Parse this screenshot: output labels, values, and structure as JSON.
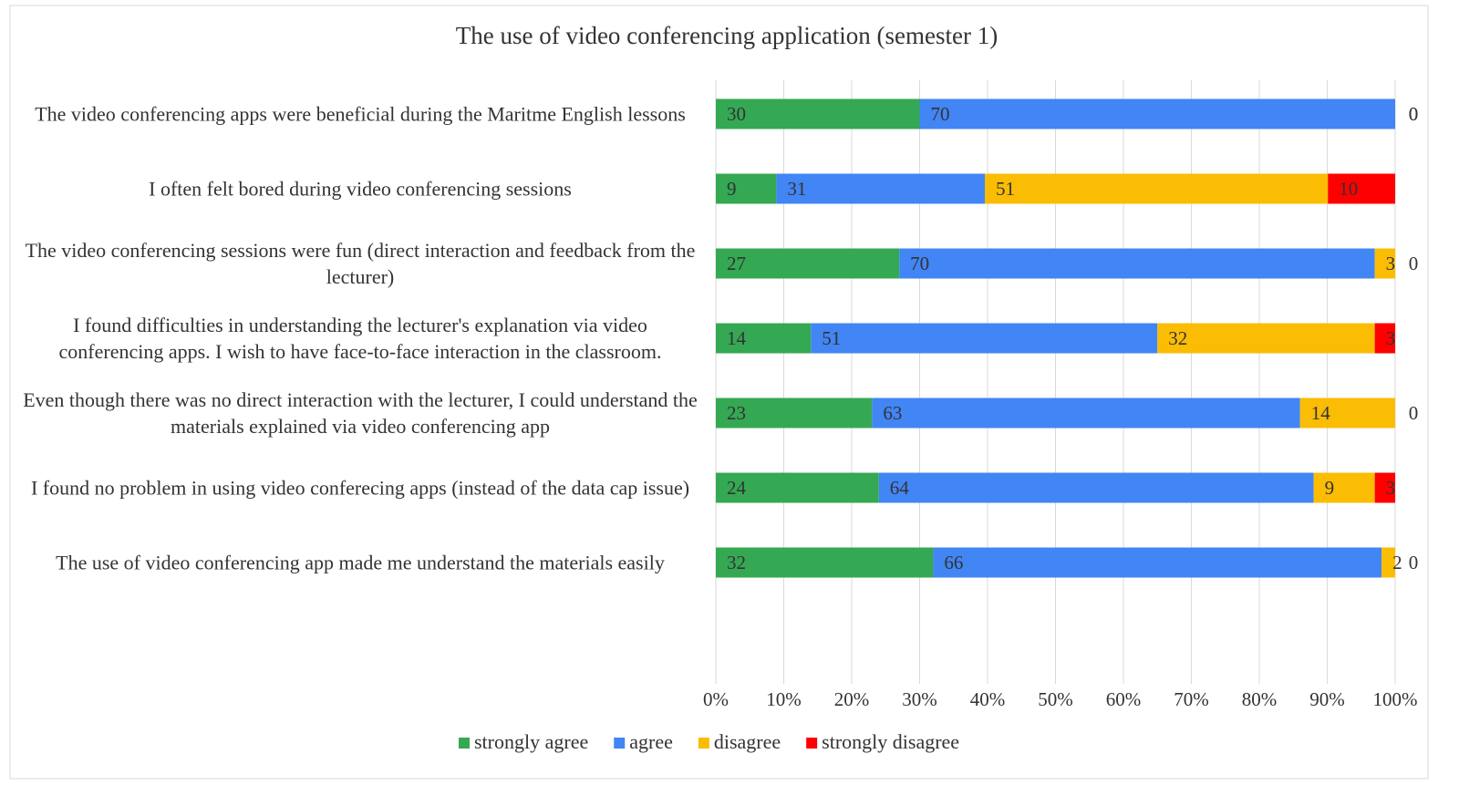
{
  "chart_data": {
    "type": "bar",
    "orientation": "horizontal",
    "stacked": "percent",
    "title": "The use of video conferencing application (semester 1)",
    "categories": [
      "The video conferencing apps were beneficial during the Maritme English lessons",
      "I often felt bored during video conferencing sessions",
      "The video conferencing sessions were fun (direct interaction and feedback from the lecturer)",
      "I found difficulties in understanding the lecturer's explanation via video conferencing apps. I wish to have face-to-face interaction in the classroom.",
      "Even though there was no direct interaction with the lecturer, I  could understand the materials explained  via video conferencing app",
      "I found no problem in using video conferecing apps (instead of the data cap issue)",
      "The use of video conferencing app made me understand the materials easily"
    ],
    "series": [
      {
        "name": "strongly agree",
        "color": "#34a853",
        "values": [
          30,
          9,
          27,
          14,
          23,
          24,
          32
        ]
      },
      {
        "name": "agree",
        "color": "#4285f4",
        "values": [
          70,
          31,
          70,
          51,
          63,
          64,
          66
        ]
      },
      {
        "name": "disagree",
        "color": "#fbbc04",
        "values": [
          0,
          51,
          3,
          32,
          14,
          9,
          2
        ]
      },
      {
        "name": "strongly disagree",
        "color": "#ff0000",
        "values": [
          0,
          10,
          0,
          3,
          0,
          3,
          0
        ]
      }
    ],
    "xlim": [
      0,
      100
    ],
    "xticks": [
      {
        "value": 0,
        "label": "0%"
      },
      {
        "value": 10,
        "label": "10%"
      },
      {
        "value": 20,
        "label": "20%"
      },
      {
        "value": 30,
        "label": "30%"
      },
      {
        "value": 40,
        "label": "40%"
      },
      {
        "value": 50,
        "label": "50%"
      },
      {
        "value": 60,
        "label": "60%"
      },
      {
        "value": 70,
        "label": "70%"
      },
      {
        "value": 80,
        "label": "80%"
      },
      {
        "value": 90,
        "label": "90%"
      },
      {
        "value": 100,
        "label": "100%"
      }
    ],
    "grid": true,
    "legend": "bottom"
  }
}
